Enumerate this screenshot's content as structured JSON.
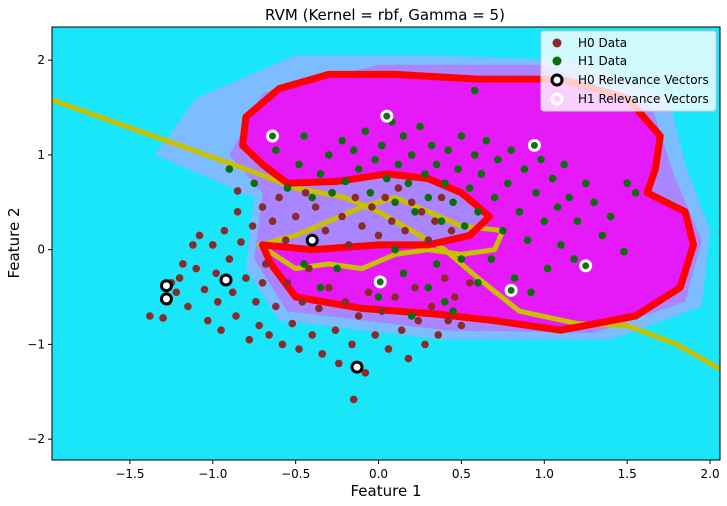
{
  "chart_data": {
    "type": "scatter",
    "title": "RVM (Kernel = rbf, Gamma = 5)",
    "xlabel": "Feature 1",
    "ylabel": "Feature 2",
    "xlim": [
      -1.97,
      2.06
    ],
    "ylim": [
      -2.22,
      2.35
    ],
    "xticks": [
      -1.5,
      -1.0,
      -0.5,
      0.0,
      0.5,
      1.0,
      1.5,
      2.0
    ],
    "xtick_labels": [
      "−1.5",
      "−1.0",
      "−0.5",
      "0.0",
      "0.5",
      "1.0",
      "1.5",
      "2.0"
    ],
    "yticks": [
      -2,
      -1,
      0,
      1,
      2
    ],
    "ytick_labels": [
      "−2",
      "−1",
      "0",
      "1",
      "2"
    ],
    "legend_position": "top-right",
    "background_color": "#19e6f8",
    "region_color": "#e619f8",
    "decision_boundary_color": "#ff0000",
    "margin_line_color": "#c8c000",
    "series": [
      {
        "name": "H0 Data",
        "color": "#8b2a2a",
        "marker": "filled-circle",
        "points": [
          [
            -1.38,
            -0.7
          ],
          [
            -1.3,
            -0.72
          ],
          [
            -1.27,
            -0.55
          ],
          [
            -1.25,
            -0.35
          ],
          [
            -1.2,
            -0.3
          ],
          [
            -1.18,
            -0.15
          ],
          [
            -1.15,
            -0.6
          ],
          [
            -1.12,
            0.05
          ],
          [
            -1.1,
            -0.2
          ],
          [
            -1.08,
            0.15
          ],
          [
            -1.05,
            -0.42
          ],
          [
            -1.03,
            -0.75
          ],
          [
            -1.0,
            0.05
          ],
          [
            -0.98,
            -0.25
          ],
          [
            -0.97,
            -0.55
          ],
          [
            -0.95,
            -0.85
          ],
          [
            -0.93,
            0.2
          ],
          [
            -0.9,
            -0.1
          ],
          [
            -0.88,
            -0.45
          ],
          [
            -0.86,
            -0.7
          ],
          [
            -0.85,
            0.4
          ],
          [
            -0.83,
            0.08
          ],
          [
            -0.8,
            -0.3
          ],
          [
            -0.78,
            -0.95
          ],
          [
            -0.76,
            0.25
          ],
          [
            -0.74,
            -0.55
          ],
          [
            -0.72,
            -0.8
          ],
          [
            -0.7,
            0.45
          ],
          [
            -0.68,
            -0.15
          ],
          [
            -0.66,
            -0.9
          ],
          [
            -0.64,
            0.3
          ],
          [
            -0.62,
            -0.6
          ],
          [
            -0.6,
            0.55
          ],
          [
            -0.58,
            -1.0
          ],
          [
            -0.56,
            0.1
          ],
          [
            -0.55,
            -0.35
          ],
          [
            -0.52,
            -0.78
          ],
          [
            -0.5,
            0.35
          ],
          [
            -0.48,
            -1.05
          ],
          [
            -0.46,
            -0.55
          ],
          [
            -0.44,
            0.6
          ],
          [
            -0.42,
            -0.2
          ],
          [
            -0.4,
            -0.9
          ],
          [
            -0.38,
            0.45
          ],
          [
            -0.36,
            -0.62
          ],
          [
            -0.34,
            -1.1
          ],
          [
            -0.32,
            0.2
          ],
          [
            -0.3,
            -0.4
          ],
          [
            -0.28,
            0.6
          ],
          [
            -0.26,
            -0.85
          ],
          [
            -0.24,
            -1.2
          ],
          [
            -0.22,
            0.35
          ],
          [
            -0.2,
            -0.55
          ],
          [
            -0.18,
            0.05
          ],
          [
            -0.16,
            -1.0
          ],
          [
            -0.14,
            0.55
          ],
          [
            -0.12,
            -0.7
          ],
          [
            -0.1,
            0.25
          ],
          [
            -0.08,
            -1.3
          ],
          [
            -0.06,
            -0.45
          ],
          [
            -0.04,
            0.45
          ],
          [
            -0.02,
            -0.9
          ],
          [
            0.0,
            0.15
          ],
          [
            0.02,
            -0.65
          ],
          [
            0.04,
            0.55
          ],
          [
            0.06,
            -1.05
          ],
          [
            0.08,
            0.3
          ],
          [
            0.1,
            -0.5
          ],
          [
            0.12,
            0.65
          ],
          [
            0.14,
            -0.85
          ],
          [
            0.16,
            0.2
          ],
          [
            0.18,
            -1.15
          ],
          [
            0.2,
            0.5
          ],
          [
            0.22,
            -0.4
          ],
          [
            0.24,
            -0.75
          ],
          [
            0.26,
            0.4
          ],
          [
            0.28,
            -1.0
          ],
          [
            0.3,
            0.1
          ],
          [
            0.32,
            -0.6
          ],
          [
            0.34,
            0.3
          ],
          [
            0.36,
            -0.9
          ],
          [
            0.38,
            0.55
          ],
          [
            0.4,
            -0.3
          ],
          [
            0.42,
            -0.75
          ],
          [
            0.44,
            0.2
          ],
          [
            0.46,
            -0.5
          ],
          [
            0.5,
            -0.8
          ],
          [
            0.55,
            -0.35
          ],
          [
            -0.15,
            -1.58
          ],
          [
            -0.85,
            0.62
          ],
          [
            -0.7,
            -0.35
          ],
          [
            -1.22,
            -0.45
          ]
        ]
      },
      {
        "name": "H1 Data",
        "color": "#0a6e0a",
        "marker": "filled-circle",
        "points": [
          [
            -0.9,
            0.85
          ],
          [
            -0.75,
            0.7
          ],
          [
            -0.62,
            1.05
          ],
          [
            -0.55,
            0.65
          ],
          [
            -0.48,
            0.9
          ],
          [
            -0.45,
            1.2
          ],
          [
            -0.4,
            0.55
          ],
          [
            -0.35,
            0.8
          ],
          [
            -0.3,
            1.0
          ],
          [
            -0.28,
            0.6
          ],
          [
            -0.22,
            1.15
          ],
          [
            -0.2,
            0.72
          ],
          [
            -0.15,
            1.05
          ],
          [
            -0.12,
            0.85
          ],
          [
            -0.08,
            1.25
          ],
          [
            -0.05,
            0.6
          ],
          [
            -0.02,
            0.95
          ],
          [
            0.02,
            1.1
          ],
          [
            0.05,
            0.75
          ],
          [
            0.08,
            1.35
          ],
          [
            0.1,
            0.5
          ],
          [
            0.12,
            0.9
          ],
          [
            0.15,
            1.2
          ],
          [
            0.18,
            0.7
          ],
          [
            0.2,
            1.0
          ],
          [
            0.22,
            0.4
          ],
          [
            0.25,
            1.3
          ],
          [
            0.28,
            0.8
          ],
          [
            0.3,
            0.55
          ],
          [
            0.32,
            1.1
          ],
          [
            0.35,
            0.9
          ],
          [
            0.38,
            0.3
          ],
          [
            0.4,
            0.7
          ],
          [
            0.42,
            1.05
          ],
          [
            0.45,
            0.5
          ],
          [
            0.48,
            0.85
          ],
          [
            0.5,
            1.2
          ],
          [
            0.52,
            0.25
          ],
          [
            0.55,
            0.65
          ],
          [
            0.58,
            1.0
          ],
          [
            0.6,
            0.4
          ],
          [
            0.62,
            0.8
          ],
          [
            0.65,
            1.15
          ],
          [
            0.68,
            -0.1
          ],
          [
            0.7,
            0.55
          ],
          [
            0.72,
            0.95
          ],
          [
            0.75,
            0.2
          ],
          [
            0.78,
            0.7
          ],
          [
            0.8,
            1.05
          ],
          [
            0.82,
            -0.3
          ],
          [
            0.85,
            0.4
          ],
          [
            0.88,
            0.85
          ],
          [
            0.9,
            0.1
          ],
          [
            0.92,
            -0.45
          ],
          [
            0.95,
            0.6
          ],
          [
            0.98,
            0.95
          ],
          [
            1.0,
            0.3
          ],
          [
            1.02,
            -0.2
          ],
          [
            1.05,
            0.75
          ],
          [
            1.08,
            0.45
          ],
          [
            1.1,
            0.05
          ],
          [
            1.12,
            0.9
          ],
          [
            1.15,
            0.55
          ],
          [
            1.18,
            -0.1
          ],
          [
            1.2,
            0.3
          ],
          [
            1.25,
            0.7
          ],
          [
            1.3,
            0.5
          ],
          [
            1.35,
            0.15
          ],
          [
            1.4,
            0.35
          ],
          [
            1.5,
            0.7
          ],
          [
            1.55,
            0.6
          ],
          [
            1.48,
            -0.02
          ],
          [
            0.58,
            1.68
          ],
          [
            0.3,
            -0.4
          ],
          [
            0.4,
            -0.55
          ],
          [
            0.5,
            -0.1
          ],
          [
            0.6,
            -0.35
          ],
          [
            0.15,
            -0.25
          ],
          [
            0.35,
            -0.15
          ],
          [
            0.1,
            0.0
          ],
          [
            -0.25,
            -0.2
          ],
          [
            -0.35,
            -0.4
          ],
          [
            -0.45,
            -0.15
          ],
          [
            0.0,
            -0.5
          ],
          [
            0.2,
            -0.7
          ],
          [
            0.45,
            -0.65
          ]
        ]
      },
      {
        "name": "H0 Relevance Vectors",
        "color": "#000000",
        "marker": "ring-dark",
        "points": [
          [
            -1.28,
            -0.38
          ],
          [
            -1.28,
            -0.52
          ],
          [
            -0.92,
            -0.32
          ],
          [
            -0.4,
            0.1
          ],
          [
            -0.13,
            -1.24
          ]
        ]
      },
      {
        "name": "H1 Relevance Vectors",
        "color": "#ffffff",
        "marker": "ring-light",
        "points": [
          [
            -0.64,
            1.2
          ],
          [
            0.05,
            1.41
          ],
          [
            0.94,
            1.1
          ],
          [
            1.25,
            -0.17
          ],
          [
            0.8,
            -0.43
          ],
          [
            0.01,
            -0.34
          ]
        ]
      }
    ],
    "decision_boundary": [
      [
        -0.6,
        1.7
      ],
      [
        -0.3,
        1.85
      ],
      [
        0.1,
        1.85
      ],
      [
        0.6,
        1.8
      ],
      [
        1.1,
        1.8
      ],
      [
        1.5,
        1.6
      ],
      [
        1.7,
        1.2
      ],
      [
        1.67,
        0.85
      ],
      [
        1.62,
        0.6
      ],
      [
        1.85,
        0.4
      ],
      [
        1.9,
        0.05
      ],
      [
        1.82,
        -0.4
      ],
      [
        1.55,
        -0.7
      ],
      [
        1.1,
        -0.85
      ],
      [
        0.7,
        -0.75
      ],
      [
        0.35,
        -0.68
      ],
      [
        -0.1,
        -0.62
      ],
      [
        -0.5,
        -0.5
      ],
      [
        -0.65,
        -0.15
      ],
      [
        -0.7,
        0.05
      ],
      [
        -0.4,
        0.0
      ],
      [
        0.0,
        0.05
      ],
      [
        0.3,
        0.05
      ],
      [
        0.55,
        0.15
      ],
      [
        0.67,
        0.35
      ],
      [
        0.5,
        0.6
      ],
      [
        0.3,
        0.75
      ],
      [
        0.05,
        0.8
      ],
      [
        -0.25,
        0.72
      ],
      [
        -0.55,
        0.7
      ],
      [
        -0.7,
        0.9
      ],
      [
        -0.82,
        1.1
      ],
      [
        -0.8,
        1.4
      ],
      [
        -0.6,
        1.7
      ]
    ],
    "margin_line_main": [
      [
        -1.97,
        1.58
      ],
      [
        -1.6,
        1.35
      ],
      [
        -1.2,
        1.1
      ],
      [
        -0.8,
        0.85
      ],
      [
        -0.5,
        0.65
      ],
      [
        -0.2,
        0.55
      ],
      [
        0.0,
        0.4
      ],
      [
        0.2,
        0.2
      ],
      [
        0.4,
        0.0
      ],
      [
        0.6,
        -0.3
      ],
      [
        0.85,
        -0.65
      ],
      [
        1.2,
        -0.78
      ],
      [
        1.5,
        -0.8
      ],
      [
        1.8,
        -1.0
      ],
      [
        2.06,
        -1.26
      ]
    ],
    "margin_line_inner": [
      [
        -0.72,
        0.05
      ],
      [
        -0.5,
        0.15
      ],
      [
        -0.3,
        0.3
      ],
      [
        -0.1,
        0.45
      ],
      [
        0.1,
        0.55
      ],
      [
        0.3,
        0.4
      ],
      [
        0.5,
        0.25
      ],
      [
        0.75,
        0.2
      ],
      [
        0.7,
        0.0
      ],
      [
        0.5,
        -0.05
      ],
      [
        0.3,
        0.0
      ],
      [
        0.1,
        -0.05
      ],
      [
        -0.1,
        -0.2
      ],
      [
        -0.3,
        -0.15
      ],
      [
        -0.5,
        -0.2
      ],
      [
        -0.72,
        0.05
      ]
    ],
    "shading_blobs": [
      [
        [
          -1.35,
          1.0
        ],
        [
          -1.1,
          1.6
        ],
        [
          -0.5,
          2.05
        ],
        [
          0.3,
          2.05
        ],
        [
          1.2,
          2.0
        ],
        [
          1.75,
          1.6
        ],
        [
          1.85,
          0.9
        ],
        [
          2.0,
          0.2
        ],
        [
          1.95,
          -0.6
        ],
        [
          1.4,
          -0.95
        ],
        [
          0.4,
          -0.95
        ],
        [
          -0.6,
          -0.75
        ],
        [
          -0.8,
          -0.2
        ],
        [
          -0.75,
          0.55
        ],
        [
          -1.35,
          1.0
        ]
      ],
      [
        [
          -0.9,
          1.0
        ],
        [
          -0.7,
          1.65
        ],
        [
          0.0,
          1.95
        ],
        [
          1.0,
          1.95
        ],
        [
          1.65,
          1.5
        ],
        [
          1.78,
          0.8
        ],
        [
          1.95,
          0.1
        ],
        [
          1.85,
          -0.55
        ],
        [
          1.3,
          -0.88
        ],
        [
          0.4,
          -0.85
        ],
        [
          -0.55,
          -0.65
        ],
        [
          -0.75,
          -0.1
        ],
        [
          -0.7,
          0.6
        ],
        [
          -0.9,
          1.0
        ]
      ]
    ]
  },
  "legend": {
    "h0_data": "H0 Data",
    "h1_data": "H1 Data",
    "h0_rv": "H0 Relevance Vectors",
    "h1_rv": "H1 Relevance Vectors"
  }
}
